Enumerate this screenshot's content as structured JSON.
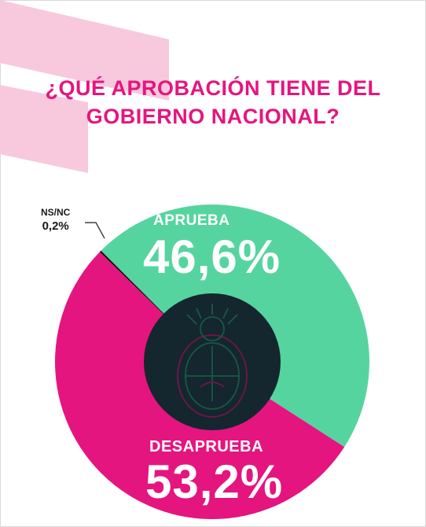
{
  "title_lines": [
    "¿QUÉ APROBACIÓN TIENE DEL",
    "GOBIERNO NACIONAL?"
  ],
  "colors": {
    "accent": "#e5157f",
    "aprueba": "#56d49f",
    "desaprueba": "#e5157f",
    "center": "#14262e",
    "decoration": "#f8c9dd"
  },
  "icons": [
    "argentine-coat-of-arms-icon"
  ],
  "chart_data": {
    "type": "pie",
    "donut": true,
    "categories": [
      "APRUEBA",
      "DESAPRUEBA",
      "NS/NC"
    ],
    "values": [
      46.6,
      53.2,
      0.2
    ],
    "value_labels": [
      "46,6%",
      "53,2%",
      "0,2%"
    ],
    "colors": [
      "#56d49f",
      "#e5157f",
      "#111111"
    ],
    "title": "¿QUÉ APROBACIÓN TIENE DEL GOBIERNO NACIONAL?",
    "legend": "none"
  }
}
